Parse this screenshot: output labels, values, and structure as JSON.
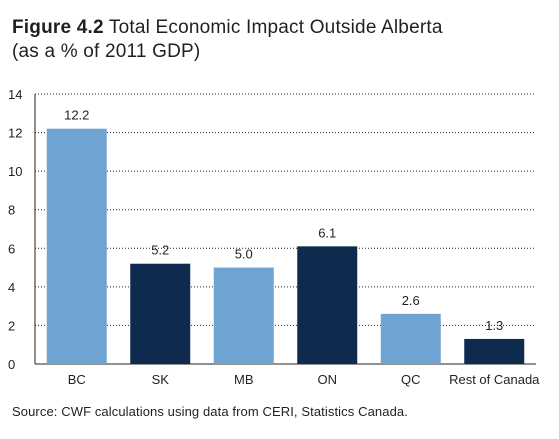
{
  "title": {
    "figure_label": "Figure 4.2",
    "main": "Total Economic Impact Outside Alberta",
    "subtitle": "(as a % of 2011 GDP)"
  },
  "source": "Source: CWF calculations using data from CERI, Statistics Canada.",
  "chart_data": {
    "type": "bar",
    "categories": [
      "BC",
      "SK",
      "MB",
      "ON",
      "QC",
      "Rest of Canada"
    ],
    "values": [
      12.2,
      5.2,
      5.0,
      6.1,
      2.6,
      1.3
    ],
    "value_labels": [
      "12.2",
      "5.2",
      "5.0",
      "6.1",
      "2.6",
      "1.3"
    ],
    "bar_colors": [
      "#6fa3d2",
      "#0e2a4e",
      "#6fa3d2",
      "#0e2a4e",
      "#6fa3d2",
      "#0e2a4e"
    ],
    "ylim": [
      0,
      14
    ],
    "yticks": [
      0,
      2,
      4,
      6,
      8,
      10,
      12,
      14
    ],
    "grid": true,
    "grid_style": "dotted",
    "xlabel": "",
    "ylabel": ""
  }
}
